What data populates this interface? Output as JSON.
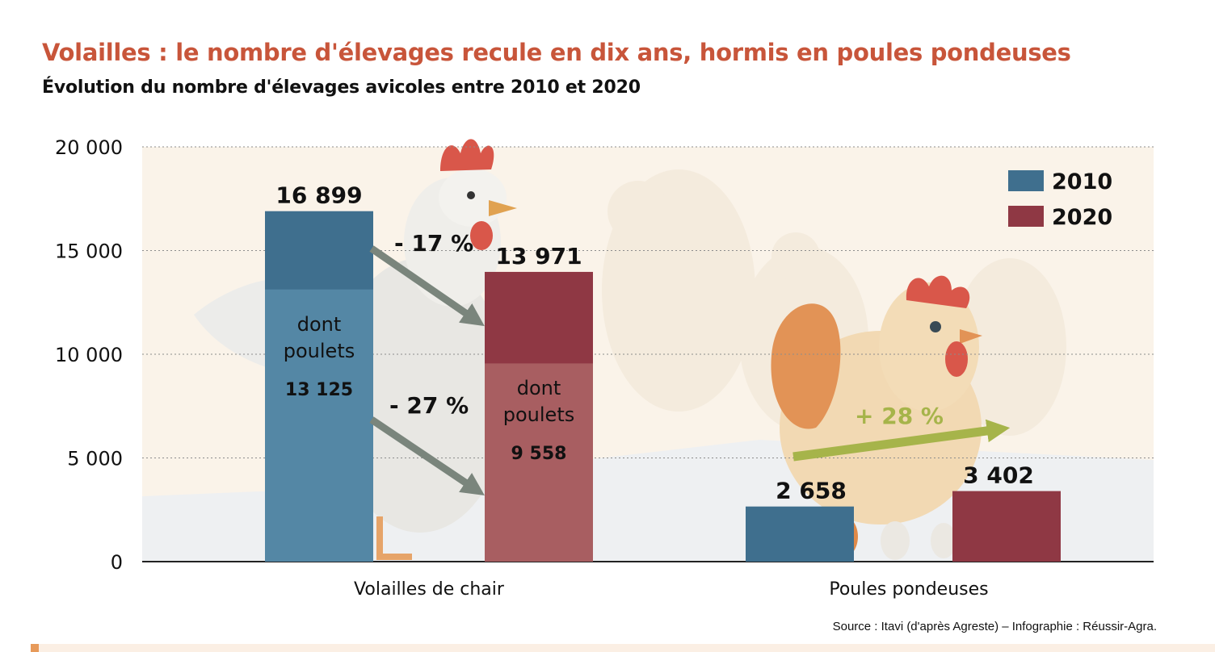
{
  "title": "Volailles : le nombre d'élevages recule en dix ans, hormis en poules pondeuses",
  "subtitle": "Évolution du nombre d'élevages avicoles entre 2010 et 2020",
  "source": "Source : Itavi (d'après Agreste) – Infographie : Réussir-Agra.",
  "colors": {
    "y2010": "#3f6f8e",
    "y2010_light": "#5487a5",
    "y2020": "#8f3844",
    "y2020_light": "#a85e61",
    "arrow_grey": "#7a857c",
    "arrow_green": "#a6b44a",
    "title": "#c8553a"
  },
  "chart_data": {
    "type": "bar",
    "categories": [
      "Volailles de chair",
      "Poules pondeuses"
    ],
    "series": [
      {
        "name": "2010",
        "values": [
          16899,
          2658
        ],
        "labels": [
          "16 899",
          "2 658"
        ]
      },
      {
        "name": "2020",
        "values": [
          13971,
          3402
        ],
        "labels": [
          "13 971",
          "3 402"
        ]
      }
    ],
    "sub_series": {
      "text": "dont poulets",
      "values": [
        13125,
        9558
      ],
      "labels": [
        "13 125",
        "9 558"
      ]
    },
    "changes": [
      "- 17 %",
      "- 27 %",
      "+ 28 %"
    ],
    "ylim": [
      0,
      20000
    ],
    "yticks": [
      0,
      5000,
      10000,
      15000,
      20000
    ],
    "ytick_labels": [
      "0",
      "5 000",
      "10 000",
      "15 000",
      "20 000"
    ],
    "grid": true,
    "legend_position": "top-right",
    "xlabel": "",
    "ylabel": ""
  }
}
